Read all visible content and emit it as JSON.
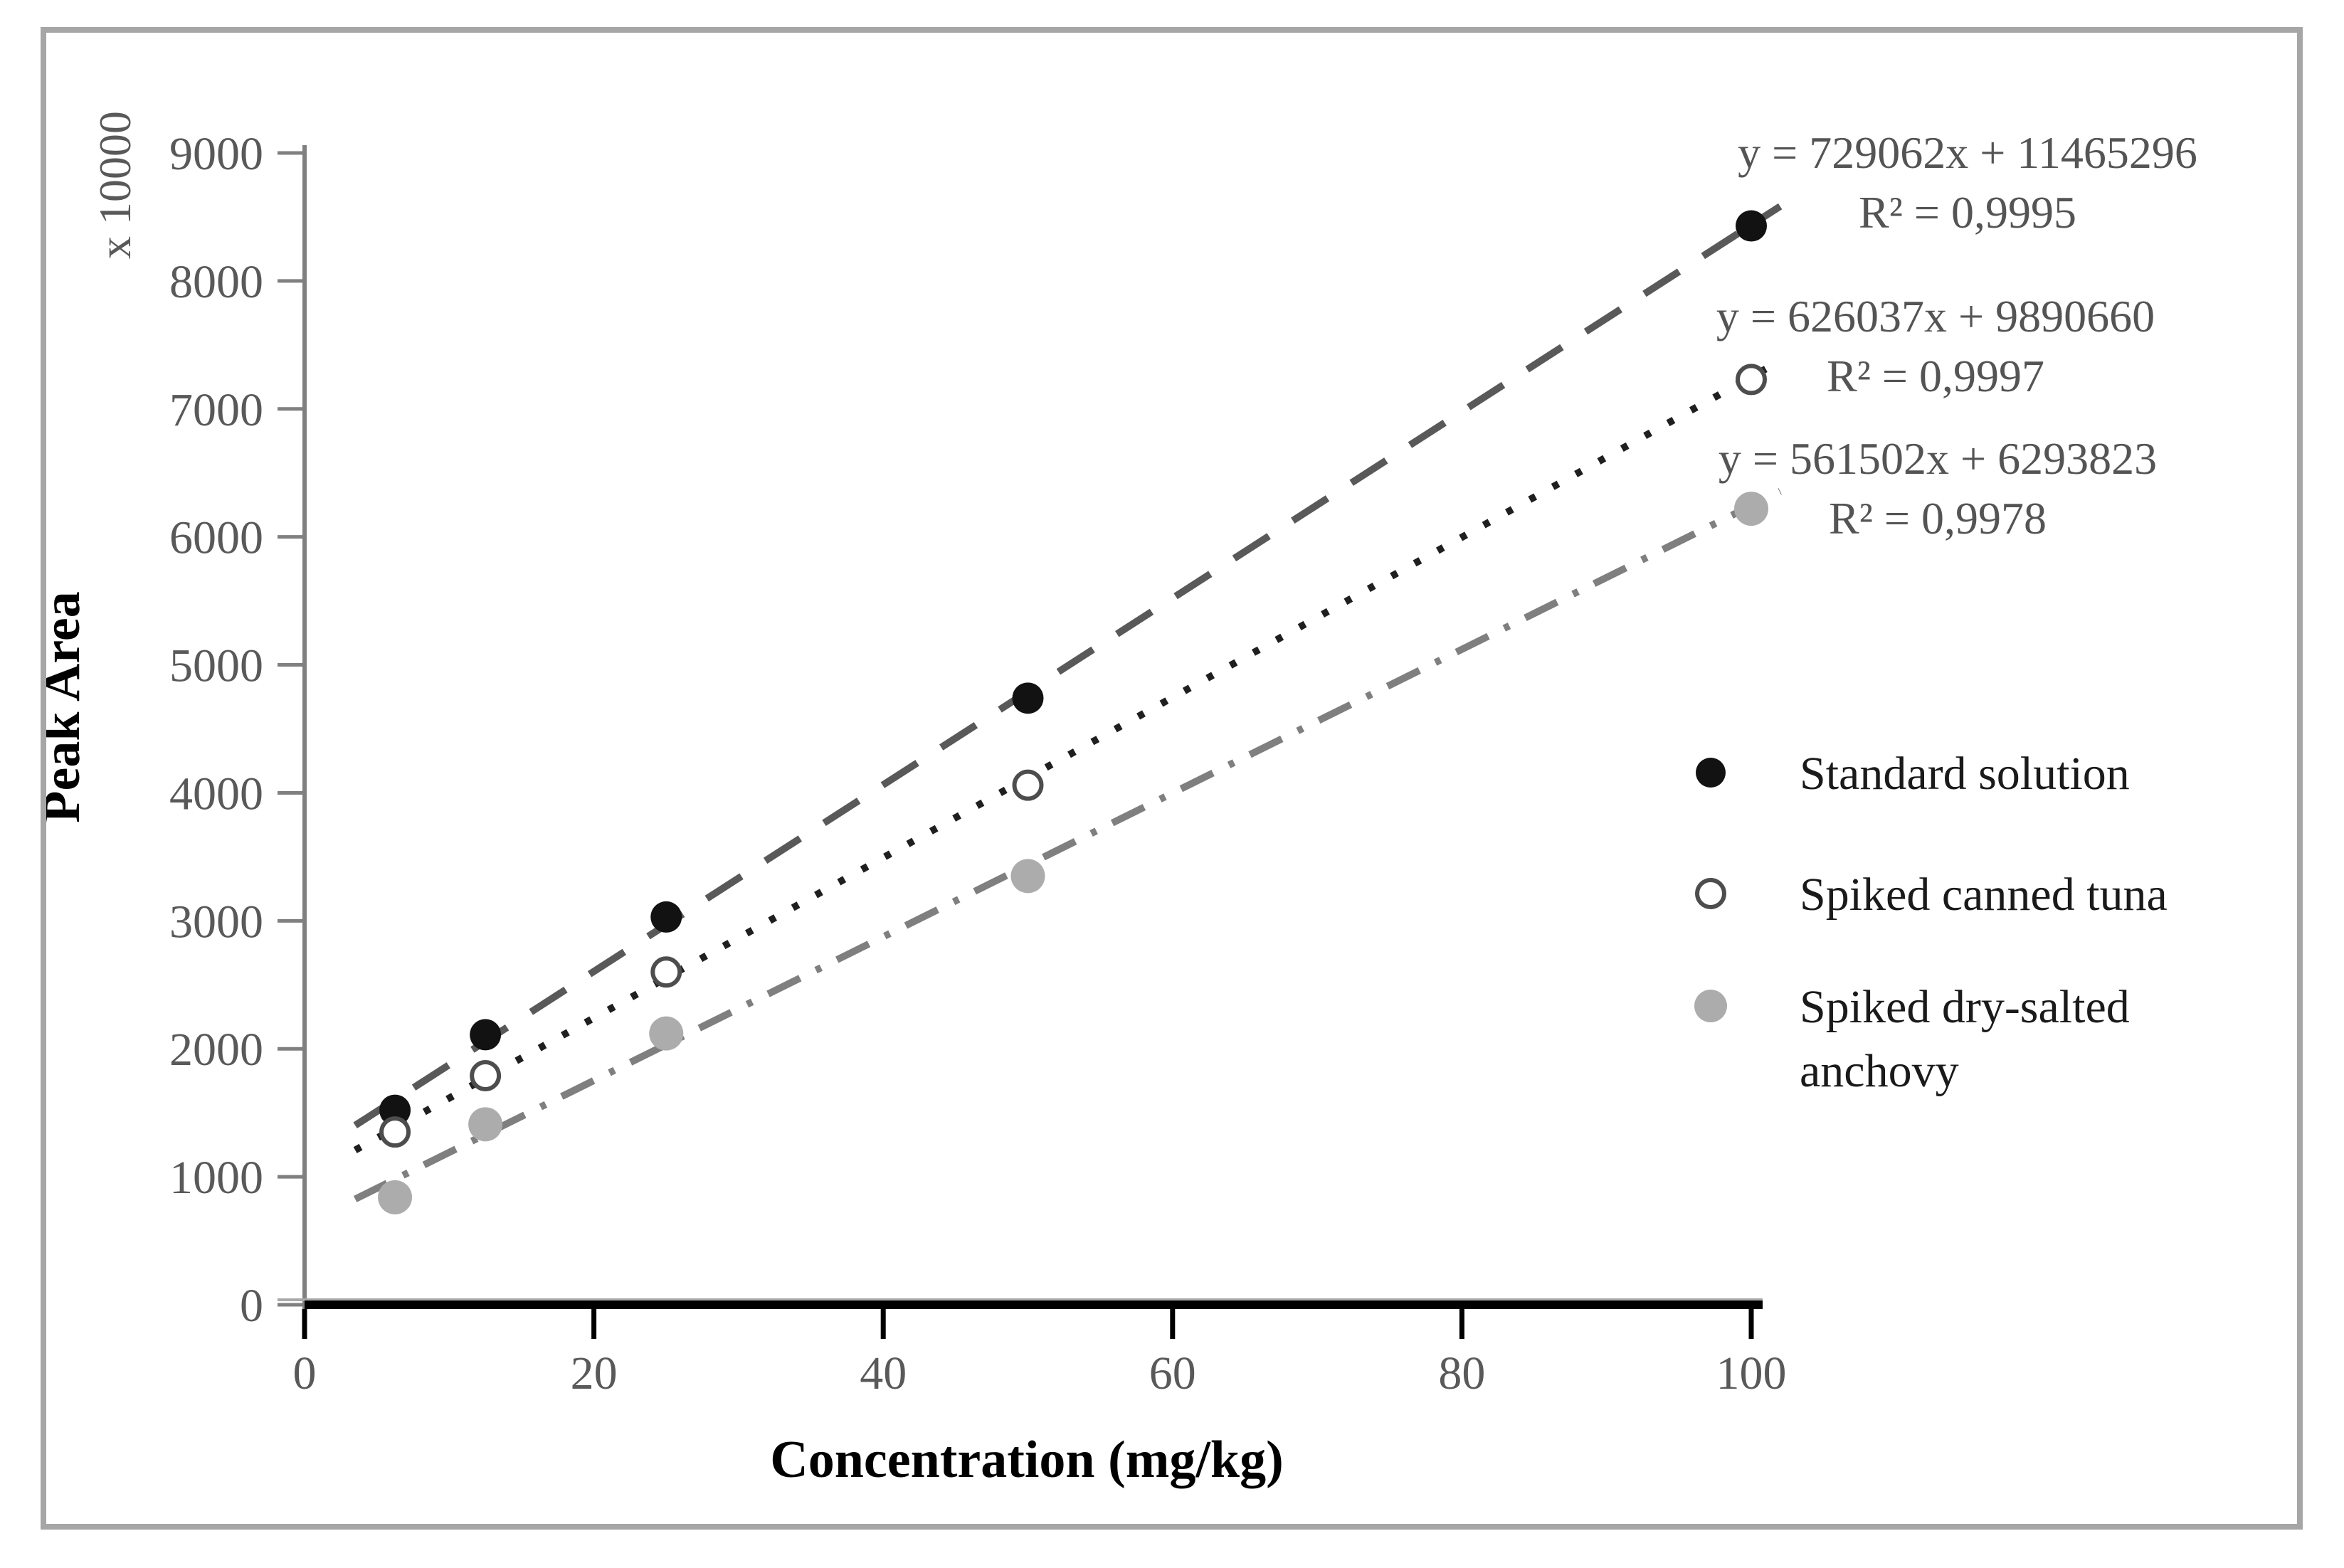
{
  "chart_data": {
    "type": "scatter",
    "title": "",
    "xlabel": "Concentration (mg/kg)",
    "ylabel": "Peak Area",
    "y_axis_multiplier": "x 10000",
    "xlim": [
      0,
      100
    ],
    "ylim": [
      0,
      9000
    ],
    "x_ticks": [
      0,
      20,
      40,
      60,
      80,
      100
    ],
    "y_ticks": [
      0,
      1000,
      2000,
      3000,
      4000,
      5000,
      6000,
      7000,
      8000,
      9000
    ],
    "grid": false,
    "legend_position": "right-inside",
    "x": [
      6.25,
      12.5,
      25,
      50,
      100
    ],
    "series": [
      {
        "name": "Standard solution",
        "values": [
          1520,
          2110,
          3030,
          4740,
          8430
        ],
        "marker": "filled-black-circle",
        "line_style": "dashed",
        "line_color": "#595959",
        "marker_fill": "#121212",
        "marker_stroke": "none",
        "equation": "y = 729062x + 11465296",
        "r2": "R² = 0,9995",
        "trend_slope_e4": 72.9062,
        "trend_intercept_e4": 1146.5296
      },
      {
        "name": "Spiked canned tuna",
        "values": [
          1350,
          1790,
          2600,
          4060,
          7230
        ],
        "marker": "open-circle",
        "line_style": "dotted",
        "line_color": "#1f1f1f",
        "marker_fill": "#ffffff",
        "marker_stroke": "#4d4d4d",
        "equation": "y = 626037x + 9890660",
        "r2": "R² = 0,9997",
        "trend_slope_e4": 62.6037,
        "trend_intercept_e4": 989.066
      },
      {
        "name": "Spiked dry-salted anchovy",
        "values": [
          840,
          1410,
          2120,
          3350,
          6220
        ],
        "marker": "filled-gray-circle",
        "line_style": "dashdot",
        "line_color": "#7f7f7f",
        "marker_fill": "#acacac",
        "marker_stroke": "none",
        "equation": "y = 561502x + 6293823",
        "r2": "R² = 0,9978",
        "trend_slope_e4": 56.1502,
        "trend_intercept_e4": 629.3823
      }
    ],
    "legend": {
      "row1": "Standard solution",
      "row2": "Spiked canned tuna",
      "row3_line1": "Spiked dry-salted",
      "row3_line2": "anchovy"
    },
    "colors": {
      "axis_gray": "#808080",
      "axis_black": "#000000",
      "tick_text": "#595959",
      "equation_text": "#545454",
      "frame_border": "#a6a6a6"
    }
  }
}
